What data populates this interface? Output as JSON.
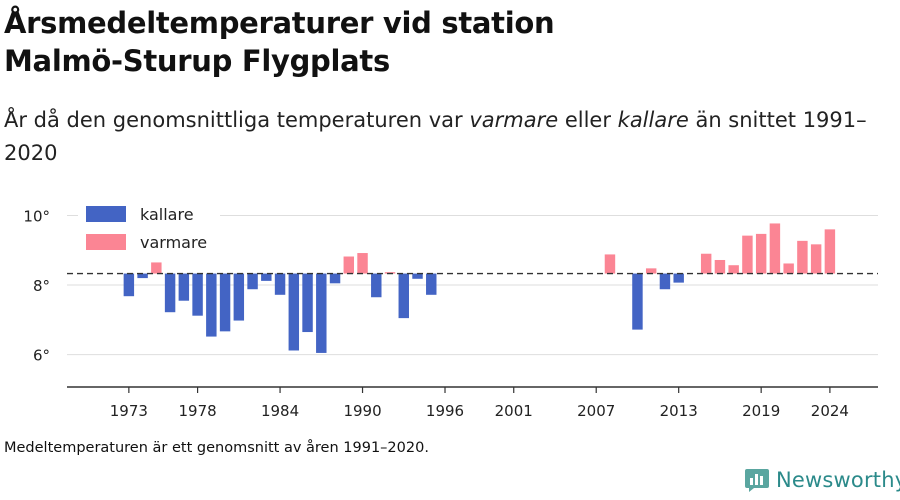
{
  "header": {
    "title_line1": "Årsmedeltemperaturer vid station",
    "title_line2": "Malmö-Sturup Flygplats",
    "subtitle_pre": "År då den genomsnittliga temperaturen var ",
    "subtitle_warm": "varmare",
    "subtitle_mid": " eller ",
    "subtitle_cold": "kallare",
    "subtitle_post": " än snittet 1991–2020"
  },
  "footnote": "Medeltemperaturen är ett genomsnitt av åren 1991–2020.",
  "brand": {
    "name": "Newsworthy",
    "icon": "newsworthy-logo-icon"
  },
  "chart_data": {
    "type": "bar",
    "baseline": 8.33,
    "ylim": [
      5.1,
      10.3
    ],
    "xlim": [
      1968.5,
      2027.5
    ],
    "yticks": [
      6,
      8,
      10
    ],
    "ytick_labels": [
      "6°",
      "8°",
      "10°"
    ],
    "xticks": [
      1973,
      1978,
      1984,
      1990,
      1996,
      2001,
      2007,
      2013,
      2019,
      2024
    ],
    "xtick_labels": [
      "1973",
      "1978",
      "1984",
      "1990",
      "1996",
      "2001",
      "2007",
      "2013",
      "2019",
      "2024"
    ],
    "grid": true,
    "legend_position": "top-left",
    "legend": [
      {
        "name": "kallare",
        "color": "#4364c4"
      },
      {
        "name": "varmare",
        "color": "#fb8594"
      }
    ],
    "colors": {
      "colder": "#4364c4",
      "warmer": "#fb8594"
    },
    "x": [
      1973,
      1974,
      1975,
      1976,
      1977,
      1978,
      1979,
      1980,
      1981,
      1982,
      1983,
      1984,
      1985,
      1986,
      1987,
      1988,
      1989,
      1990,
      1991,
      1992,
      1993,
      1994,
      1995,
      2008,
      2010,
      2011,
      2012,
      2013,
      2015,
      2016,
      2017,
      2018,
      2019,
      2020,
      2021,
      2022,
      2023,
      2024
    ],
    "values": [
      7.68,
      8.2,
      8.65,
      7.22,
      7.55,
      7.12,
      6.52,
      6.67,
      6.98,
      7.88,
      8.12,
      7.72,
      6.12,
      6.65,
      6.05,
      8.05,
      8.82,
      8.92,
      7.65,
      8.37,
      7.05,
      8.18,
      7.72,
      8.88,
      6.72,
      8.48,
      7.88,
      8.07,
      8.9,
      8.72,
      8.57,
      9.42,
      9.47,
      9.77,
      8.62,
      9.27,
      9.17,
      9.6
    ]
  }
}
